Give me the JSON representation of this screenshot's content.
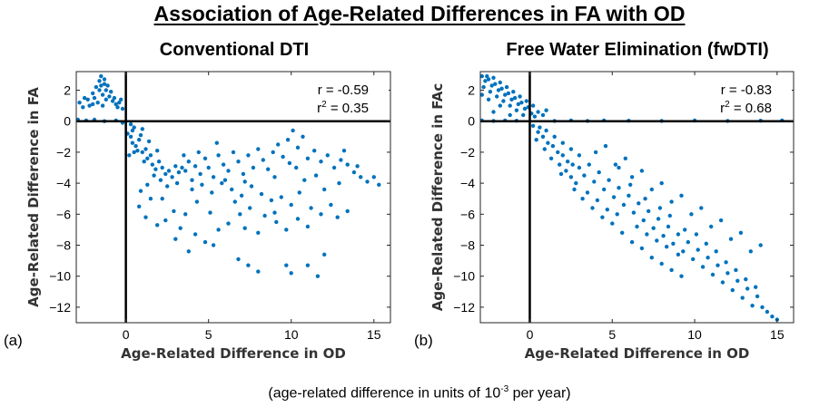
{
  "figure": {
    "title": "Association of Age-Related Differences in FA with OD",
    "footnote_prefix": "(age-related difference in units of 10",
    "footnote_exponent": "-3",
    "footnote_suffix": " per year)"
  },
  "chart_data": [
    {
      "type": "scatter",
      "panel_label": "(a)",
      "title": "Conventional DTI",
      "xlabel": "Age-Related Difference in OD",
      "ylabel": "Age-Related Difference in FA",
      "xlim": [
        -3,
        16
      ],
      "ylim": [
        -13,
        3.2
      ],
      "xticks": [
        0,
        5,
        10,
        15
      ],
      "yticks": [
        2,
        0,
        -2,
        -4,
        -6,
        -8,
        -10,
        -12
      ],
      "ytick_labels": [
        "2",
        "0",
        "−2",
        "−4",
        "−6",
        "−8",
        "−10",
        "−12"
      ],
      "stats": {
        "r": "r = -0.59",
        "r2_prefix": "r",
        "r2_sup": "2",
        "r2_value": " = 0.35"
      },
      "marker_color": "#0072BD",
      "points": [
        [
          -2.8,
          1.2
        ],
        [
          -2.5,
          1.5
        ],
        [
          -2.2,
          1.0
        ],
        [
          -2,
          1.8
        ],
        [
          -1.8,
          2.2
        ],
        [
          -1.6,
          2.6
        ],
        [
          -1.5,
          2.9
        ],
        [
          -1.3,
          2.4
        ],
        [
          -1.2,
          2.0
        ],
        [
          -1.0,
          1.6
        ],
        [
          -0.8,
          1.3
        ],
        [
          -0.6,
          1.1
        ],
        [
          -0.5,
          0.9
        ],
        [
          -0.3,
          1.4
        ],
        [
          -0.2,
          0.8
        ],
        [
          -1.7,
          1.2
        ],
        [
          -1.4,
          1.0
        ],
        [
          -2.3,
          1.4
        ],
        [
          -1.1,
          2.3
        ],
        [
          -0.9,
          1.9
        ],
        [
          -2.6,
          0.9
        ],
        [
          -2.0,
          1.1
        ],
        [
          -1.9,
          1.5
        ],
        [
          -1.4,
          1.7
        ],
        [
          -0.7,
          1.5
        ],
        [
          -0.4,
          1.2
        ],
        [
          -1.6,
          2.0
        ],
        [
          -1.3,
          2.7
        ],
        [
          -1.5,
          2.3
        ],
        [
          -1.2,
          1.4
        ],
        [
          -2.9,
          0.1
        ],
        [
          -2.4,
          0.05
        ],
        [
          -1.9,
          0.1
        ],
        [
          -1.3,
          0.0
        ],
        [
          -0.6,
          0.05
        ],
        [
          -0.2,
          -0.1
        ],
        [
          0.3,
          -0.2
        ],
        [
          0.5,
          -0.4
        ],
        [
          0.1,
          -0.8
        ],
        [
          0.3,
          -1.0
        ],
        [
          0.4,
          -1.4
        ],
        [
          0.6,
          -1.6
        ],
        [
          0.8,
          -1.2
        ],
        [
          1.0,
          -2.0
        ],
        [
          1.2,
          -1.8
        ],
        [
          1.3,
          -2.4
        ],
        [
          1.5,
          -2.2
        ],
        [
          1.6,
          -2.8
        ],
        [
          1.8,
          -3.1
        ],
        [
          2.0,
          -2.6
        ],
        [
          2.2,
          -3.0
        ],
        [
          2.4,
          -3.4
        ],
        [
          2.6,
          -3.2
        ],
        [
          0.9,
          -0.9
        ],
        [
          0.7,
          -1.9
        ],
        [
          1.1,
          -2.6
        ],
        [
          1.4,
          -1.3
        ],
        [
          1.9,
          -1.9
        ],
        [
          0.2,
          -2.2
        ],
        [
          0.5,
          -2.0
        ],
        [
          1.7,
          -3.5
        ],
        [
          2.1,
          -3.8
        ],
        [
          2.8,
          -3.6
        ],
        [
          3.0,
          -2.9
        ],
        [
          3.2,
          -3.3
        ],
        [
          3.4,
          -3.0
        ],
        [
          0.4,
          -0.6
        ],
        [
          1.0,
          -0.5
        ],
        [
          3.6,
          -3.2
        ],
        [
          3.8,
          -2.6
        ],
        [
          4.0,
          -3.8
        ],
        [
          4.2,
          -2.9
        ],
        [
          4.5,
          -3.4
        ],
        [
          4.8,
          -2.4
        ],
        [
          5.0,
          -3.0
        ],
        [
          5.3,
          -3.6
        ],
        [
          5.6,
          -2.2
        ],
        [
          5.9,
          -2.8
        ],
        [
          6.2,
          -3.2
        ],
        [
          6.5,
          -2.0
        ],
        [
          6.8,
          -2.6
        ],
        [
          7.1,
          -3.4
        ],
        [
          7.4,
          -2.2
        ],
        [
          7.7,
          -3.0
        ],
        [
          8.0,
          -1.8
        ],
        [
          8.3,
          -2.5
        ],
        [
          8.6,
          -3.1
        ],
        [
          8.9,
          -2.0
        ],
        [
          9.2,
          -1.5
        ],
        [
          9.5,
          -2.3
        ],
        [
          9.8,
          -1.2
        ],
        [
          10.1,
          -0.6
        ],
        [
          10.4,
          -1.7
        ],
        [
          10.7,
          -1.0
        ],
        [
          11.0,
          -2.4
        ],
        [
          11.4,
          -1.9
        ],
        [
          11.8,
          -2.6
        ],
        [
          12.2,
          -2.2
        ],
        [
          12.6,
          -3.0
        ],
        [
          13.0,
          -2.5
        ],
        [
          13.4,
          -2.8
        ],
        [
          13.8,
          -3.3
        ],
        [
          14.2,
          -3.6
        ],
        [
          14.6,
          -3.9
        ],
        [
          15.0,
          -3.6
        ],
        [
          15.3,
          -4.1
        ],
        [
          14.0,
          -2.9
        ],
        [
          13.2,
          -1.9
        ],
        [
          4.0,
          -4.4
        ],
        [
          4.6,
          -4.1
        ],
        [
          5.2,
          -4.6
        ],
        [
          5.8,
          -4.0
        ],
        [
          6.4,
          -4.4
        ],
        [
          7.0,
          -4.8
        ],
        [
          7.6,
          -4.2
        ],
        [
          8.2,
          -4.7
        ],
        [
          8.8,
          -5.1
        ],
        [
          9.4,
          -4.9
        ],
        [
          10.0,
          -5.4
        ],
        [
          10.5,
          -4.6
        ],
        [
          11.2,
          -5.6
        ],
        [
          11.8,
          -6.0
        ],
        [
          12.4,
          -5.4
        ],
        [
          12.8,
          -6.2
        ],
        [
          13.4,
          -5.8
        ],
        [
          9.0,
          -3.6
        ],
        [
          6.0,
          -3.8
        ],
        [
          7.2,
          -3.9
        ],
        [
          2.5,
          -4.2
        ],
        [
          3.1,
          -4.0
        ],
        [
          2.2,
          -5.0
        ],
        [
          2.9,
          -5.8
        ],
        [
          2.4,
          -6.4
        ],
        [
          3.3,
          -6.9
        ],
        [
          4.2,
          -7.3
        ],
        [
          4.8,
          -7.8
        ],
        [
          5.6,
          -7.0
        ],
        [
          6.2,
          -6.6
        ],
        [
          6.9,
          -6.0
        ],
        [
          7.5,
          -5.6
        ],
        [
          8.4,
          -6.1
        ],
        [
          9.1,
          -6.5
        ],
        [
          9.7,
          -7.0
        ],
        [
          5.1,
          -5.9
        ],
        [
          4.3,
          -5.2
        ],
        [
          3.6,
          -6.0
        ],
        [
          8.0,
          -7.2
        ],
        [
          7.2,
          -6.9
        ],
        [
          5.3,
          -8.0
        ],
        [
          6.8,
          -8.9
        ],
        [
          7.4,
          -9.3
        ],
        [
          8.0,
          -9.7
        ],
        [
          10.0,
          -9.8
        ],
        [
          11.0,
          -9.3
        ],
        [
          11.6,
          -10.0
        ],
        [
          9.7,
          -9.3
        ],
        [
          3.8,
          -8.4
        ],
        [
          12.0,
          -8.6
        ],
        [
          0.8,
          -5.5
        ],
        [
          1.2,
          -6.2
        ],
        [
          1.5,
          -5.0
        ],
        [
          1.9,
          -6.7
        ],
        [
          0.9,
          -4.5
        ],
        [
          1.3,
          -4.1
        ],
        [
          3.5,
          -2.2
        ],
        [
          4.4,
          -2.0
        ],
        [
          5.5,
          -1.4
        ],
        [
          10.3,
          -3.0
        ],
        [
          9.9,
          -2.7
        ],
        [
          11.5,
          -3.5
        ],
        [
          12.0,
          -4.4
        ],
        [
          10.8,
          -3.8
        ],
        [
          12.9,
          -4.0
        ],
        [
          6.6,
          -5.2
        ],
        [
          9.0,
          -5.9
        ],
        [
          10.4,
          -6.3
        ],
        [
          11.0,
          -6.8
        ],
        [
          3.0,
          -7.6
        ]
      ]
    },
    {
      "type": "scatter",
      "panel_label": "(b)",
      "title": "Free Water Elimination (fwDTI)",
      "xlabel": "Age-Related Difference in OD",
      "ylabel": "Age-Related Difference in FAc",
      "xlim": [
        -3,
        16
      ],
      "ylim": [
        -13,
        3.2
      ],
      "xticks": [
        0,
        5,
        10,
        15
      ],
      "yticks": [
        2,
        0,
        -2,
        -4,
        -6,
        -8,
        -10,
        -12
      ],
      "ytick_labels": [
        "2",
        "0",
        "−2",
        "−4",
        "−6",
        "−8",
        "−10",
        "−12"
      ],
      "stats": {
        "r": "r = -0.83",
        "r2_prefix": "r",
        "r2_sup": "2",
        "r2_value": " = 0.68"
      },
      "marker_color": "#0072BD",
      "points": [
        [
          -2.9,
          2.9
        ],
        [
          -2.7,
          2.6
        ],
        [
          -2.5,
          2.7
        ],
        [
          -2.3,
          2.3
        ],
        [
          -2.1,
          2.4
        ],
        [
          -1.9,
          2.0
        ],
        [
          -1.7,
          2.1
        ],
        [
          -1.5,
          1.7
        ],
        [
          -1.3,
          1.8
        ],
        [
          -1.1,
          1.4
        ],
        [
          -0.9,
          1.5
        ],
        [
          -0.7,
          1.1
        ],
        [
          -0.5,
          1.2
        ],
        [
          -0.3,
          0.8
        ],
        [
          -0.1,
          0.9
        ],
        [
          0.1,
          0.5
        ],
        [
          -2.8,
          2.2
        ],
        [
          -2.4,
          1.9
        ],
        [
          -2.0,
          1.6
        ],
        [
          -1.6,
          1.3
        ],
        [
          -1.2,
          1.0
        ],
        [
          -0.8,
          0.7
        ],
        [
          -0.4,
          0.4
        ],
        [
          -2.6,
          2.9
        ],
        [
          -2.2,
          2.8
        ],
        [
          -1.8,
          2.5
        ],
        [
          -1.4,
          2.2
        ],
        [
          -1.0,
          1.9
        ],
        [
          -0.6,
          1.6
        ],
        [
          -0.2,
          1.3
        ],
        [
          0.2,
          1.0
        ],
        [
          0.5,
          0.6
        ],
        [
          0.8,
          0.4
        ],
        [
          -2.9,
          1.7
        ],
        [
          -2.5,
          1.4
        ],
        [
          -1.8,
          1.0
        ],
        [
          1.0,
          0.7
        ],
        [
          0.3,
          0.3
        ],
        [
          -1.2,
          0.4
        ],
        [
          -2.2,
          0.6
        ],
        [
          -2.9,
          0.05
        ],
        [
          -2.2,
          0.02
        ],
        [
          -1.5,
          0.05
        ],
        [
          -0.8,
          0.03
        ],
        [
          1.5,
          0.02
        ],
        [
          2.5,
          0.05
        ],
        [
          3.5,
          0.02
        ],
        [
          4.5,
          0.05
        ],
        [
          6.0,
          0.03
        ],
        [
          8.0,
          0.02
        ],
        [
          10.0,
          0.04
        ],
        [
          12.0,
          0.02
        ],
        [
          14.0,
          0.03
        ],
        [
          15.3,
          0.05
        ],
        [
          0.2,
          -0.3
        ],
        [
          0.5,
          -0.7
        ],
        [
          0.8,
          -1.0
        ],
        [
          1.1,
          -1.4
        ],
        [
          1.4,
          -1.6
        ],
        [
          1.7,
          -2.0
        ],
        [
          2.0,
          -2.2
        ],
        [
          2.3,
          -2.6
        ],
        [
          2.6,
          -2.8
        ],
        [
          0.4,
          -1.2
        ],
        [
          0.9,
          -1.8
        ],
        [
          1.3,
          -2.4
        ],
        [
          1.8,
          -2.8
        ],
        [
          2.2,
          -3.2
        ],
        [
          0.6,
          -0.4
        ],
        [
          1.0,
          -0.6
        ],
        [
          1.5,
          -1.0
        ],
        [
          2.0,
          -1.4
        ],
        [
          2.5,
          -1.8
        ],
        [
          3.0,
          -2.2
        ],
        [
          3.0,
          -3.0
        ],
        [
          3.3,
          -3.5
        ],
        [
          3.6,
          -2.8
        ],
        [
          3.9,
          -3.9
        ],
        [
          4.2,
          -3.3
        ],
        [
          4.5,
          -4.4
        ],
        [
          4.8,
          -3.8
        ],
        [
          5.1,
          -4.9
        ],
        [
          5.4,
          -4.3
        ],
        [
          5.7,
          -5.4
        ],
        [
          6.0,
          -4.8
        ],
        [
          6.3,
          -5.9
        ],
        [
          6.6,
          -5.3
        ],
        [
          6.9,
          -6.4
        ],
        [
          7.2,
          -5.8
        ],
        [
          7.5,
          -6.9
        ],
        [
          7.8,
          -6.3
        ],
        [
          8.1,
          -7.4
        ],
        [
          8.4,
          -6.8
        ],
        [
          8.7,
          -7.9
        ],
        [
          9.0,
          -7.3
        ],
        [
          9.3,
          -8.4
        ],
        [
          9.6,
          -7.8
        ],
        [
          9.9,
          -8.9
        ],
        [
          10.2,
          -8.3
        ],
        [
          10.5,
          -9.4
        ],
        [
          10.8,
          -8.8
        ],
        [
          11.1,
          -9.9
        ],
        [
          11.4,
          -9.3
        ],
        [
          11.7,
          -10.4
        ],
        [
          12.0,
          -9.8
        ],
        [
          12.3,
          -10.9
        ],
        [
          12.6,
          -10.3
        ],
        [
          12.9,
          -11.4
        ],
        [
          13.2,
          -10.8
        ],
        [
          13.5,
          -11.9
        ],
        [
          13.8,
          -11.3
        ],
        [
          14.1,
          -12.0
        ],
        [
          14.4,
          -12.3
        ],
        [
          14.7,
          -12.6
        ],
        [
          15.0,
          -12.8
        ],
        [
          4.0,
          -2.0
        ],
        [
          4.6,
          -1.6
        ],
        [
          5.2,
          -2.8
        ],
        [
          5.8,
          -2.4
        ],
        [
          6.2,
          -3.6
        ],
        [
          6.8,
          -3.2
        ],
        [
          7.4,
          -4.4
        ],
        [
          8.0,
          -4.0
        ],
        [
          8.6,
          -5.2
        ],
        [
          9.2,
          -4.8
        ],
        [
          9.8,
          -6.0
        ],
        [
          10.4,
          -5.6
        ],
        [
          11.0,
          -6.8
        ],
        [
          11.6,
          -6.4
        ],
        [
          12.2,
          -7.6
        ],
        [
          12.8,
          -7.2
        ],
        [
          13.4,
          -8.4
        ],
        [
          14.0,
          -8.0
        ],
        [
          3.2,
          -5.0
        ],
        [
          3.8,
          -5.6
        ],
        [
          4.4,
          -6.2
        ],
        [
          5.0,
          -6.6
        ],
        [
          5.6,
          -7.2
        ],
        [
          6.2,
          -7.8
        ],
        [
          6.8,
          -8.2
        ],
        [
          7.4,
          -8.8
        ],
        [
          8.0,
          -9.2
        ],
        [
          8.6,
          -9.6
        ],
        [
          9.2,
          -10.0
        ],
        [
          5.4,
          -3.0
        ],
        [
          6.1,
          -4.1
        ],
        [
          7.0,
          -5.0
        ],
        [
          7.9,
          -5.6
        ],
        [
          8.5,
          -6.1
        ],
        [
          9.4,
          -7.0
        ],
        [
          10.1,
          -7.3
        ],
        [
          10.7,
          -7.9
        ],
        [
          11.3,
          -8.4
        ],
        [
          11.9,
          -9.1
        ],
        [
          12.5,
          -9.6
        ],
        [
          13.1,
          -10.2
        ],
        [
          13.7,
          -10.7
        ],
        [
          2.8,
          -4.0
        ],
        [
          3.5,
          -4.6
        ],
        [
          4.1,
          -5.1
        ],
        [
          4.7,
          -5.7
        ],
        [
          5.3,
          -6.0
        ],
        [
          6.5,
          -6.8
        ],
        [
          7.1,
          -7.3
        ],
        [
          7.7,
          -7.7
        ],
        [
          8.3,
          -8.1
        ],
        [
          9.0,
          -8.6
        ],
        [
          2.5,
          -3.6
        ],
        [
          1.9,
          -3.4
        ],
        [
          2.7,
          -4.4
        ]
      ]
    }
  ]
}
